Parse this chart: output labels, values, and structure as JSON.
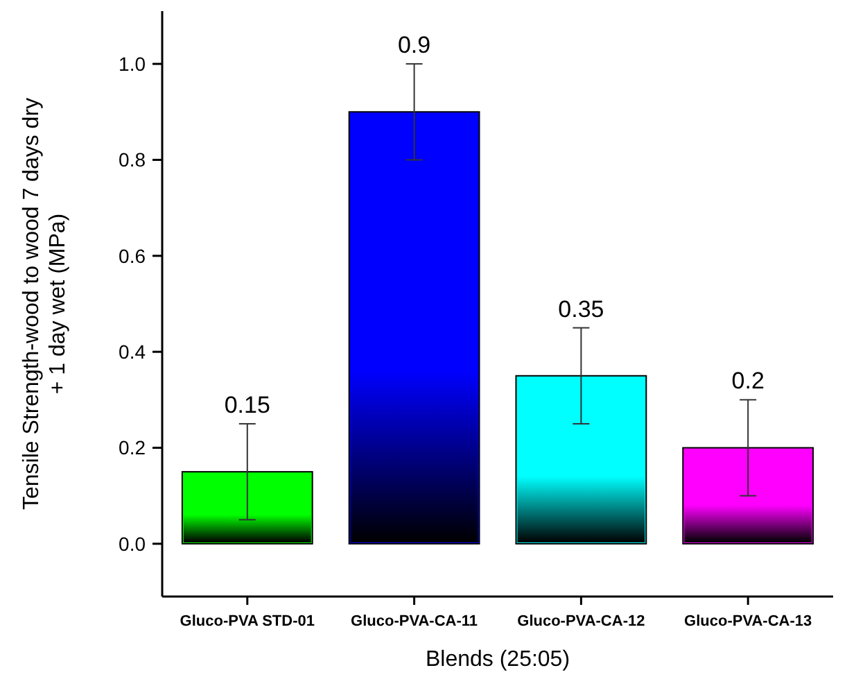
{
  "chart_data": {
    "type": "bar",
    "xlabel": "Blends (25:05)",
    "ylabel": "Tensile Strength-wood to wood 7 days dry + 1 day wet (MPa)",
    "categories": [
      "Gluco-PVA STD-01",
      "Gluco-PVA-CA-11",
      "Gluco-PVA-CA-12",
      "Gluco-PVA-CA-13"
    ],
    "values": [
      0.15,
      0.9,
      0.35,
      0.2
    ],
    "errors": [
      0.1,
      0.1,
      0.1,
      0.1
    ],
    "colors": [
      "#00ff00",
      "#0000ff",
      "#00ffff",
      "#ff00ff"
    ],
    "ylim": [
      -0.11,
      1.11
    ],
    "yticks": [
      {
        "value": 0,
        "label": "0.0"
      },
      0.2,
      0.4,
      0.6,
      0.8,
      {
        "value": 1,
        "label": "1.0"
      }
    ],
    "data_labels": true,
    "grid": false,
    "legend": false
  }
}
